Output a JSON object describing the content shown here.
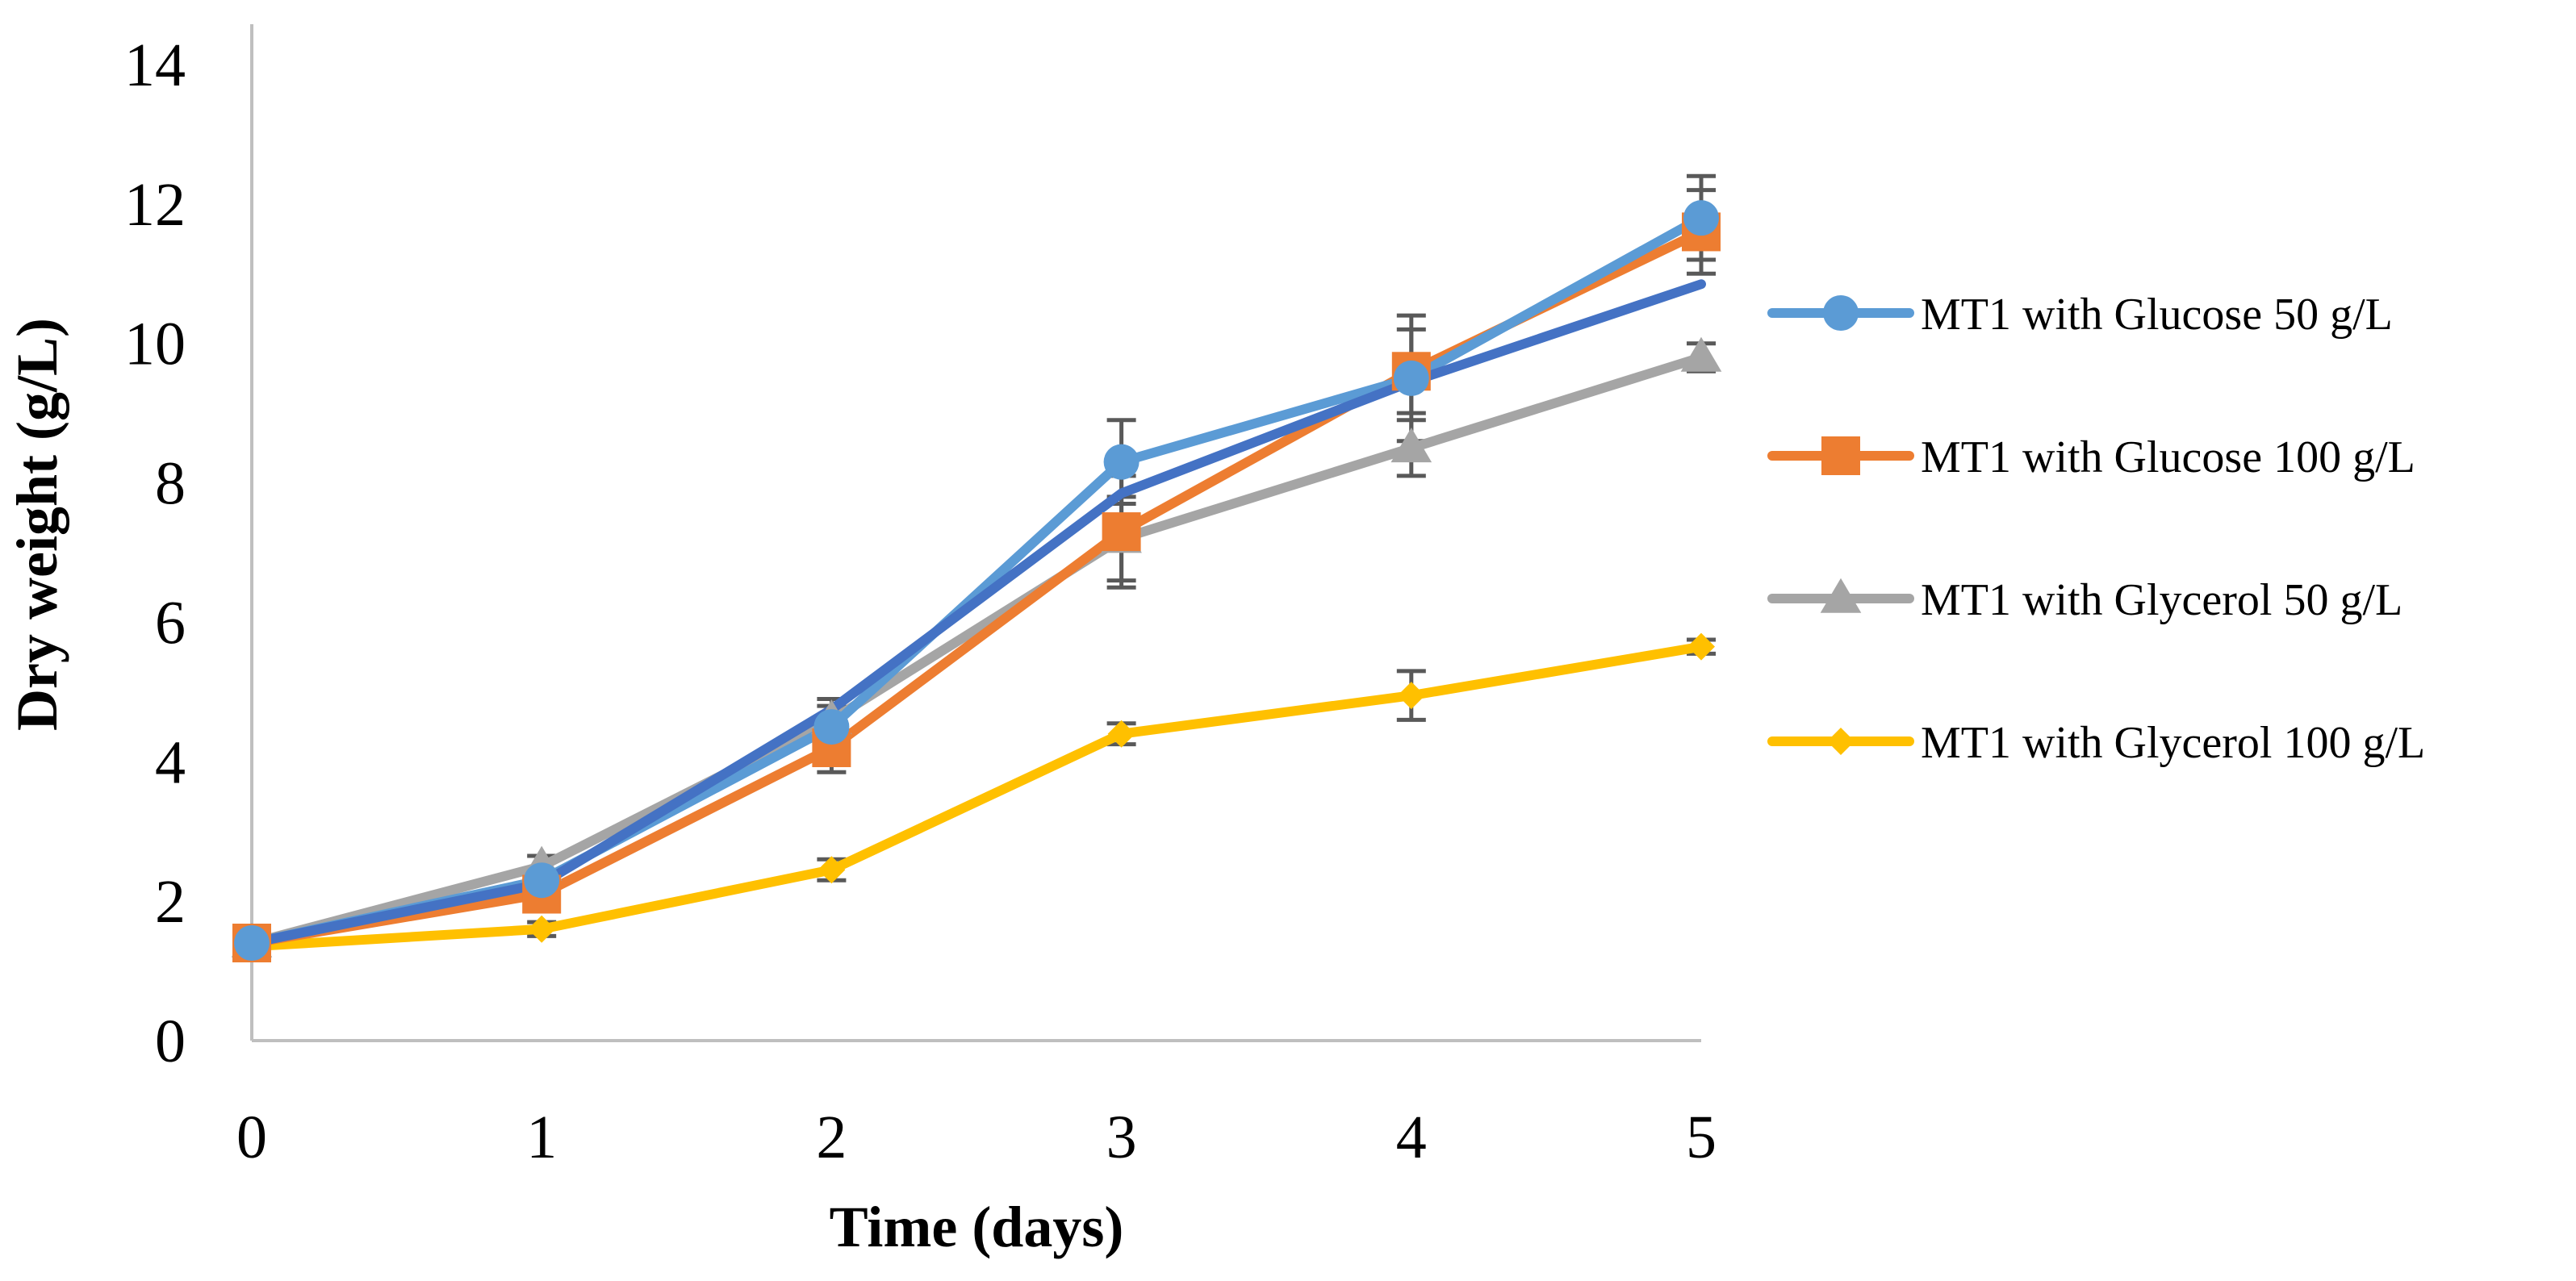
{
  "chart_data": {
    "type": "line",
    "title": "",
    "xlabel": "Time (days)",
    "ylabel": "Dry weight (g/L)",
    "x": [
      0,
      1,
      2,
      3,
      4,
      5
    ],
    "x_tick_labels": [
      "0",
      "1",
      "2",
      "3",
      "4",
      "5"
    ],
    "xlim": [
      0,
      5
    ],
    "ylim": [
      0,
      14
    ],
    "y_ticks": [
      0,
      2,
      4,
      6,
      8,
      10,
      12,
      14
    ],
    "y_tick_labels": [
      "0",
      "2",
      "4",
      "6",
      "8",
      "10",
      "12",
      "14"
    ],
    "grid": false,
    "legend_position": "right",
    "series": [
      {
        "name": "MT1 with Glucose 50 g/L",
        "color": "#5B9BD5",
        "marker": "circle",
        "values": [
          1.4,
          2.3,
          4.5,
          8.3,
          9.5,
          11.8
        ],
        "errors": [
          0.1,
          0.15,
          0.3,
          0.6,
          0.9,
          0.6
        ]
      },
      {
        "name": "MT1 with Glucose 100 g/L",
        "color": "#ED7D31",
        "marker": "square",
        "values": [
          1.4,
          2.1,
          4.2,
          7.3,
          9.6,
          11.6
        ],
        "errors": [
          0.1,
          0.15,
          0.35,
          0.8,
          0.6,
          0.6
        ]
      },
      {
        "name": "MT1 with Glycerol 50 g/L",
        "color": "#A5A5A5",
        "marker": "triangle",
        "values": [
          1.4,
          2.5,
          4.6,
          7.2,
          8.5,
          9.8
        ],
        "errors": [
          0.1,
          0.15,
          0.3,
          0.6,
          0.4,
          0.2
        ]
      },
      {
        "name": "MT1 with Glycerol 100 g/L",
        "color": "#FFC000",
        "marker": "diamond",
        "values": [
          1.35,
          1.6,
          2.45,
          4.4,
          4.95,
          5.65
        ],
        "errors": [
          0.05,
          0.1,
          0.15,
          0.15,
          0.35,
          0.1
        ]
      },
      {
        "name": "",
        "color": "#4472C4",
        "marker": "none",
        "values": [
          1.4,
          2.25,
          4.75,
          7.85,
          9.45,
          10.85
        ],
        "errors": []
      }
    ]
  }
}
